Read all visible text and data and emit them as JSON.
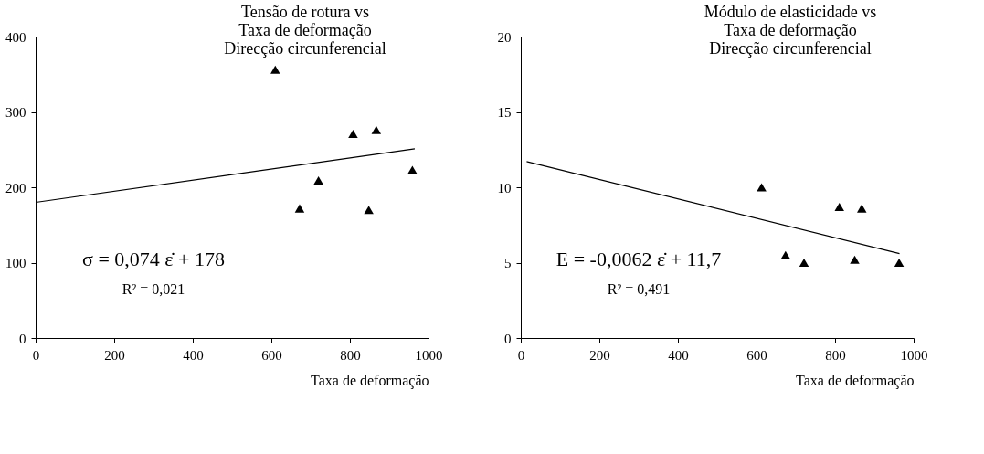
{
  "chart_data": [
    {
      "type": "scatter",
      "title": [
        "Tensão de rotura vs",
        "Taxa de deformação",
        "Direcção circunferencial"
      ],
      "xlabel": "Taxa de deformação",
      "xlim": [
        0,
        1000
      ],
      "xticks": [
        0,
        200,
        400,
        600,
        800,
        1000
      ],
      "ylim": [
        0,
        400
      ],
      "yticks": [
        0,
        100,
        200,
        300,
        400
      ],
      "grid": false,
      "marker": "triangle",
      "series": [
        {
          "color": "#000000",
          "x": [
            610,
            672,
            720,
            808,
            848,
            867,
            959
          ],
          "values": [
            356,
            172,
            209,
            271,
            170,
            276,
            223
          ]
        },
        {
          "type": "line",
          "marker": "none",
          "color": "#000000",
          "x": [
            0,
            965
          ],
          "values": [
            180,
            251
          ]
        }
      ],
      "annotations": [
        "σ = 0,074 ε̇ + 178",
        "R² = 0,021"
      ]
    },
    {
      "type": "scatter",
      "title": [
        "Módulo de elasticidade vs",
        "Taxa de deformação",
        "Direcção circunferencial"
      ],
      "xlabel": "Taxa de deformação",
      "xlim": [
        0,
        1000
      ],
      "xticks": [
        0,
        200,
        400,
        600,
        800,
        1000
      ],
      "ylim": [
        0,
        20
      ],
      "yticks": [
        0,
        5,
        10,
        15,
        20
      ],
      "grid": false,
      "marker": "triangle",
      "series": [
        {
          "color": "#000000",
          "x": [
            613,
            674,
            721,
            811,
            850,
            868,
            963
          ],
          "values": [
            10.0,
            5.5,
            5.0,
            8.7,
            5.2,
            8.6,
            5.0
          ]
        },
        {
          "type": "line",
          "marker": "none",
          "color": "#000000",
          "x": [
            15,
            964
          ],
          "values": [
            11.7,
            5.6
          ]
        }
      ],
      "annotations": [
        "E = -0,0062 ε̇ + 11,7",
        "R² = 0,491"
      ]
    }
  ]
}
